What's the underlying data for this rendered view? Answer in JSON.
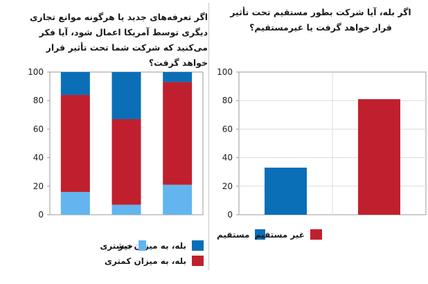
{
  "colors": {
    "blue_dark": "#0a6fb7",
    "red": "#c0202e",
    "blue_light": "#62b5ee"
  },
  "chart_data": [
    {
      "type": "bar",
      "stacked": true,
      "title": "اگر تعرفه‌های جدید یا هرگونه موانع تجاری دیگری توسط آمریکا اعمال شود، آیا فکر می‌کنید که شرکت شما تحت تأثیر قرار خواهد گرفت؟",
      "ylim": [
        0,
        100
      ],
      "yticks": [
        0,
        20,
        40,
        60,
        80,
        100
      ],
      "categories": [
        "",
        "",
        ""
      ],
      "series": [
        {
          "name": "خیر",
          "color": "#62b5ee",
          "values": [
            16,
            7,
            21
          ]
        },
        {
          "name": "بله، به میزان کمتری",
          "color": "#c0202e",
          "values": [
            68,
            60,
            72
          ]
        },
        {
          "name": "بله، به میزان بیشتری",
          "color": "#0a6fb7",
          "values": [
            16,
            33,
            7
          ]
        }
      ],
      "gridlines": false,
      "legend_position": "bottom"
    },
    {
      "type": "bar",
      "title": "اگر بله، آیا شرکت بطور مستقیم تحت تأثیر قرار خواهد گرفت یا غیرمستقیم؟",
      "ylim": [
        0,
        100
      ],
      "yticks": [
        0,
        20,
        40,
        60,
        80,
        100
      ],
      "categories": [
        "مستقیم",
        "غیر مستقیم"
      ],
      "values": [
        33,
        81
      ],
      "colors": [
        "#0a6fb7",
        "#c0202e"
      ],
      "gridlines": true,
      "legend_position": "bottom"
    }
  ]
}
